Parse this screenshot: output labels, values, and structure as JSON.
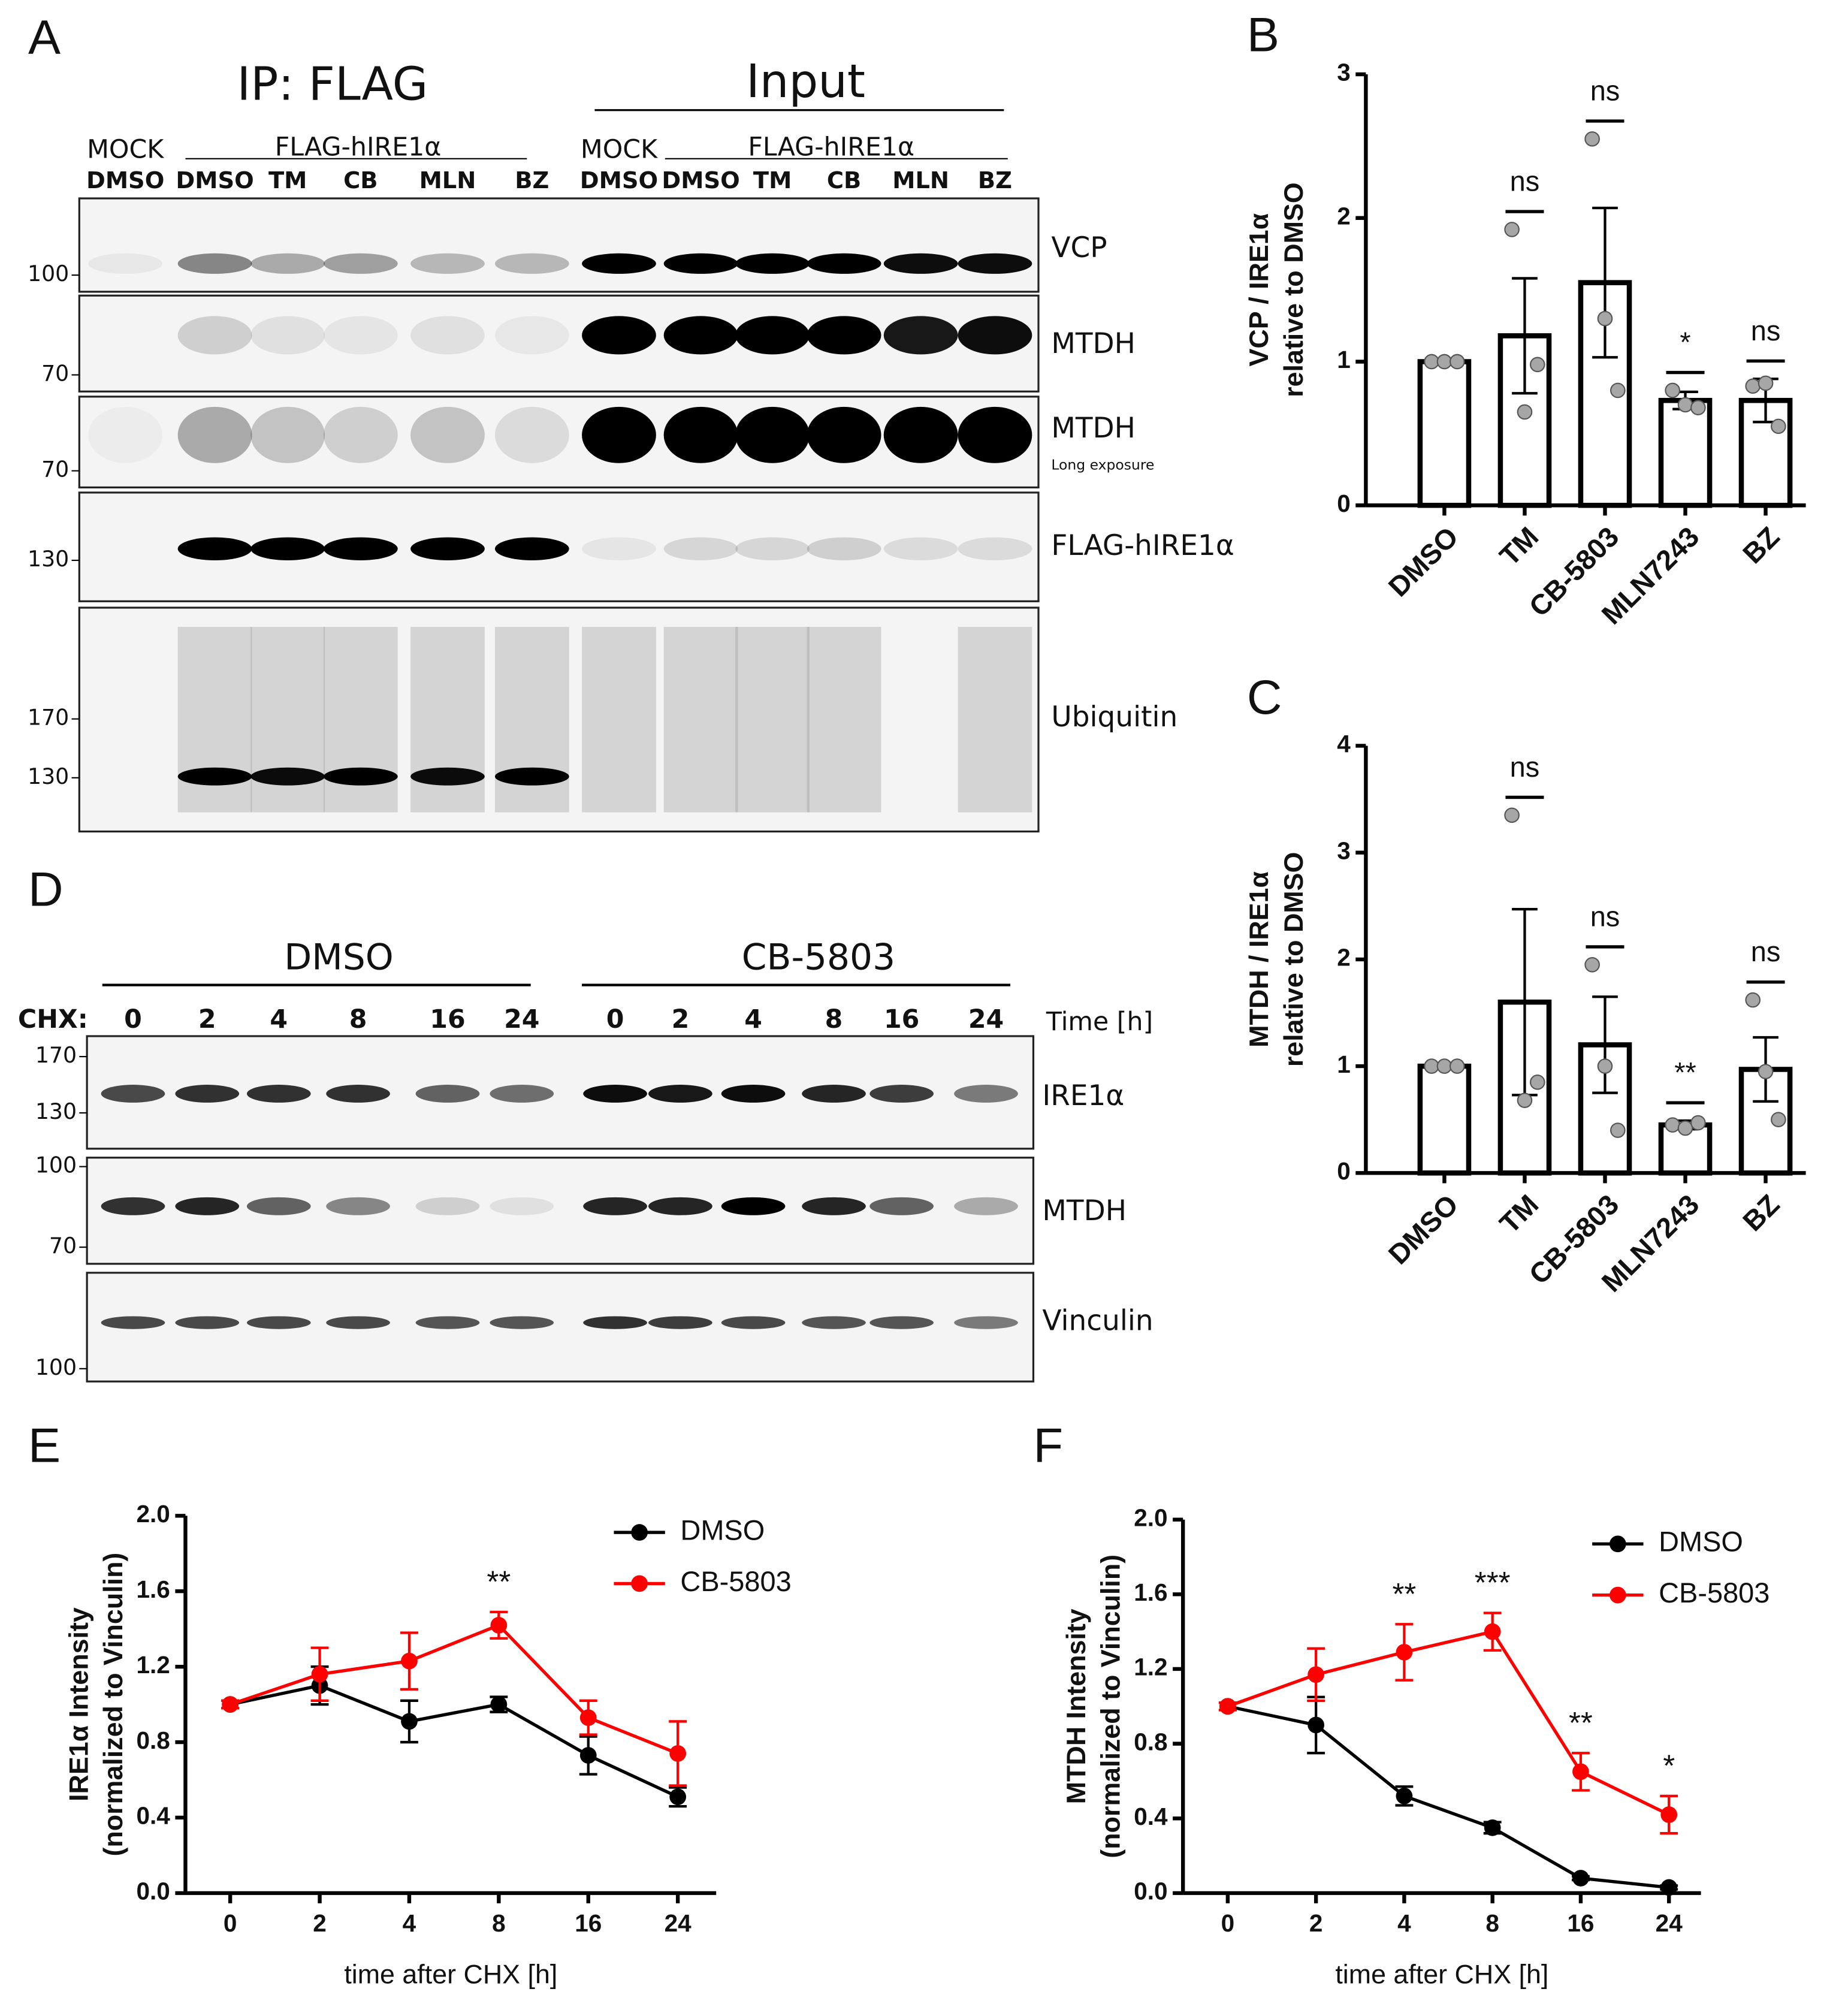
{
  "blot_a": {
    "panel_label": "A",
    "ip_title": "IP: FLAG",
    "input_title": "Input",
    "mock_labels": [
      "MOCK",
      "MOCK"
    ],
    "group_labels": [
      "FLAG-hIRE1α",
      "FLAG-hIRE1α"
    ],
    "lanes": [
      "DMSO",
      "DMSO",
      "TM",
      "CB",
      "MLN",
      "BZ",
      "DMSO",
      "DMSO",
      "TM",
      "CB",
      "MLN",
      "BZ"
    ],
    "rows": [
      {
        "label": "VCP",
        "markers": [
          "100"
        ]
      },
      {
        "label": "MTDH",
        "markers": [
          "70"
        ]
      },
      {
        "label": "MTDH",
        "note": "Long exposure",
        "markers": [
          "70"
        ]
      },
      {
        "label": "FLAG-hIRE1α",
        "markers": [
          "130"
        ]
      },
      {
        "label": "Ubiquitin",
        "markers": [
          "170",
          "130"
        ]
      }
    ]
  },
  "blot_d": {
    "panel_label": "D",
    "groups": [
      "DMSO",
      "CB-5803"
    ],
    "time_prefix": "CHX:",
    "times": [
      "0",
      "2",
      "4",
      "8",
      "16",
      "24",
      "0",
      "2",
      "4",
      "8",
      "16",
      "24"
    ],
    "time_label": "Time [h]",
    "rows": [
      {
        "label": "IRE1α",
        "markers": [
          "170",
          "130"
        ]
      },
      {
        "label": "MTDH",
        "markers": [
          "100",
          "70"
        ]
      },
      {
        "label": "Vinculin",
        "markers": [
          "100"
        ]
      }
    ]
  },
  "chart_data": [
    {
      "type": "bar",
      "panel_label": "B",
      "y_label": [
        "VCP / IRE1α",
        "relative to DMSO"
      ],
      "categories": [
        "DMSO",
        "TM",
        "CB-5803",
        "MLN7243",
        "BZ"
      ],
      "values": [
        1.0,
        1.18,
        1.55,
        0.73,
        0.73
      ],
      "errors": [
        0.0,
        0.4,
        0.52,
        0.06,
        0.15
      ],
      "points": [
        [
          1,
          1,
          1
        ],
        [
          1.92,
          0.65,
          0.98
        ],
        [
          2.55,
          1.3,
          0.8
        ],
        [
          0.8,
          0.7,
          0.68
        ],
        [
          0.83,
          0.85,
          0.55
        ]
      ],
      "significance": [
        null,
        "ns",
        "ns",
        "*",
        "ns"
      ],
      "bar_color": "#ffffff",
      "edge_color": "#000000",
      "point_color": "#a6a6a6",
      "ylim": [
        0,
        3
      ],
      "yticks": [
        0,
        1,
        2,
        3
      ]
    },
    {
      "type": "bar",
      "panel_label": "C",
      "y_label": [
        "MTDH / IRE1α",
        "relative to DMSO"
      ],
      "categories": [
        "DMSO",
        "TM",
        "CB-5803",
        "MLN7243",
        "BZ"
      ],
      "values": [
        1.0,
        1.6,
        1.2,
        0.45,
        0.97
      ],
      "errors": [
        0.0,
        0.87,
        0.45,
        0.04,
        0.3
      ],
      "points": [
        [
          1,
          1,
          1
        ],
        [
          3.35,
          0.68,
          0.85
        ],
        [
          1.95,
          1.0,
          0.4
        ],
        [
          0.45,
          0.42,
          0.47
        ],
        [
          1.62,
          0.95,
          0.5
        ]
      ],
      "significance": [
        null,
        "ns",
        "ns",
        "**",
        "ns"
      ],
      "bar_color": "#ffffff",
      "edge_color": "#000000",
      "point_color": "#a6a6a6",
      "ylim": [
        0,
        4
      ],
      "yticks": [
        0,
        1,
        2,
        3,
        4
      ]
    },
    {
      "type": "line",
      "panel_label": "E",
      "y_label": [
        "IRE1α Intensity",
        "(normalized to Vinculin)"
      ],
      "x_label": "time after CHX [h]",
      "categories": [
        "0",
        "2",
        "4",
        "8",
        "16",
        "24"
      ],
      "legend": "upper right",
      "series": [
        {
          "name": "DMSO",
          "color": "#000000",
          "values": [
            1.0,
            1.1,
            0.91,
            1.0,
            0.73,
            0.51
          ],
          "errors": [
            0.02,
            0.1,
            0.11,
            0.04,
            0.1,
            0.05
          ]
        },
        {
          "name": "CB-5803",
          "color": "#ff0000",
          "values": [
            1.0,
            1.16,
            1.23,
            1.42,
            0.93,
            0.74
          ],
          "errors": [
            0.02,
            0.14,
            0.15,
            0.07,
            0.09,
            0.17
          ]
        }
      ],
      "significance": [
        null,
        null,
        null,
        "**",
        null,
        null
      ],
      "ylim": [
        0,
        2
      ],
      "yticks": [
        {
          "value": 0,
          "label": "0.0"
        },
        {
          "value": 0.4,
          "label": "0.4"
        },
        {
          "value": 0.8,
          "label": "0.8"
        },
        {
          "value": 1.2,
          "label": "1.2"
        },
        {
          "value": 1.6,
          "label": "1.6"
        },
        {
          "value": 2,
          "label": "2.0"
        }
      ]
    },
    {
      "type": "line",
      "panel_label": "F",
      "y_label": [
        "MTDH Intensity",
        "(normalized to Vinculin)"
      ],
      "x_label": "time after CHX [h]",
      "categories": [
        "0",
        "2",
        "4",
        "8",
        "16",
        "24"
      ],
      "legend": "upper right",
      "series": [
        {
          "name": "DMSO",
          "color": "#000000",
          "values": [
            1.0,
            0.9,
            0.52,
            0.35,
            0.08,
            0.03
          ],
          "errors": [
            0.02,
            0.15,
            0.05,
            0.03,
            0.01,
            0.01
          ]
        },
        {
          "name": "CB-5803",
          "color": "#ff0000",
          "values": [
            1.0,
            1.17,
            1.29,
            1.4,
            0.65,
            0.42
          ],
          "errors": [
            0.02,
            0.14,
            0.15,
            0.1,
            0.1,
            0.1
          ]
        }
      ],
      "significance": [
        null,
        null,
        "**",
        "***",
        "**",
        "*"
      ],
      "ylim": [
        0,
        2
      ],
      "yticks": [
        {
          "value": 0,
          "label": "0.0"
        },
        {
          "value": 0.4,
          "label": "0.4"
        },
        {
          "value": 0.8,
          "label": "0.8"
        },
        {
          "value": 1.2,
          "label": "1.2"
        },
        {
          "value": 1.6,
          "label": "1.6"
        },
        {
          "value": 2,
          "label": "2.0"
        }
      ]
    }
  ]
}
